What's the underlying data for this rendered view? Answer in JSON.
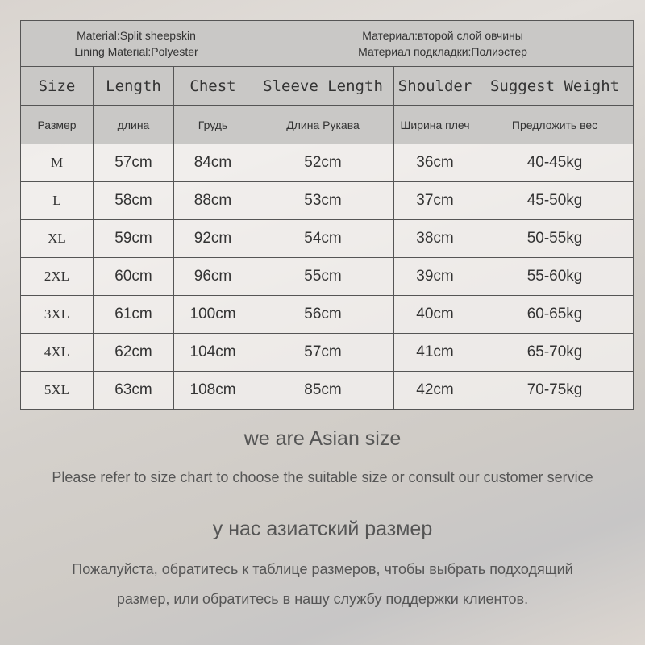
{
  "material": {
    "en": [
      "Material:Split sheepskin",
      "Lining Material:Polyester"
    ],
    "ru": [
      "Материал:второй слой овчины",
      "Материал подкладки:Полиэстер"
    ]
  },
  "headers_en": [
    "Size",
    "Length",
    "Chest",
    "Sleeve Length",
    "Shoulder",
    "Suggest Weight"
  ],
  "headers_ru": [
    "Размер",
    "длина",
    "Грудь",
    "Длина Рукава",
    "Ширина плеч",
    "Предложить вес"
  ],
  "rows": [
    [
      "M",
      "57cm",
      "84cm",
      "52cm",
      "36cm",
      "40-45kg"
    ],
    [
      "L",
      "58cm",
      "88cm",
      "53cm",
      "37cm",
      "45-50kg"
    ],
    [
      "XL",
      "59cm",
      "92cm",
      "54cm",
      "38cm",
      "50-55kg"
    ],
    [
      "2XL",
      "60cm",
      "96cm",
      "55cm",
      "39cm",
      "55-60kg"
    ],
    [
      "3XL",
      "61cm",
      "100cm",
      "56cm",
      "40cm",
      "60-65kg"
    ],
    [
      "4XL",
      "62cm",
      "104cm",
      "57cm",
      "41cm",
      "65-70kg"
    ],
    [
      "5XL",
      "63cm",
      "108cm",
      "85cm",
      "42cm",
      "70-75kg"
    ]
  ],
  "notes": {
    "asian_en": "we are Asian size",
    "refer_en": "Please refer to size chart to choose the suitable size or consult our customer service",
    "asian_ru": "у нас азиатский размер",
    "refer_ru_1": "Пожалуйста, обратитесь к таблице размеров, чтобы выбрать подходящий",
    "refer_ru_2": "размер, или обратитесь в нашу службу поддержки клиентов."
  }
}
